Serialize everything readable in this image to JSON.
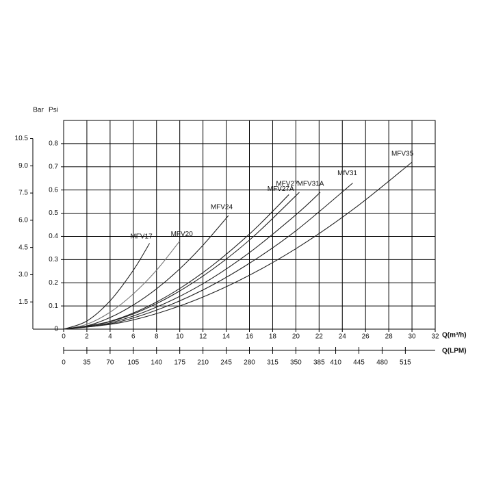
{
  "chart_data": {
    "type": "line",
    "y_axis_label": "Bar",
    "y2_axis_label": "Psi",
    "x_axis_label": "Q(m³/h)",
    "x2_axis_label": "Q(LPM)",
    "xlim": [
      0,
      32
    ],
    "xticks": [
      0,
      2,
      4,
      6,
      8,
      10,
      12,
      14,
      16,
      18,
      20,
      22,
      24,
      26,
      28,
      30,
      32
    ],
    "ylim": [
      0,
      0.9
    ],
    "yticks": [
      0,
      0.1,
      0.2,
      0.3,
      0.4,
      0.5,
      0.6,
      0.7,
      0.8
    ],
    "y2lim": [
      0,
      11.5
    ],
    "y2ticks": [
      {
        "value": 1.5,
        "label": "1.5"
      },
      {
        "value": 3,
        "label": "3.0"
      },
      {
        "value": 4.5,
        "label": "4.5"
      },
      {
        "value": 6,
        "label": "6.0"
      },
      {
        "value": 7.5,
        "label": "7.5"
      },
      {
        "value": 9,
        "label": "9.0"
      },
      {
        "value": 10.5,
        "label": "10.5"
      }
    ],
    "x2lim": [
      0,
      560
    ],
    "x2ticks": [
      0,
      35,
      70,
      105,
      140,
      175,
      210,
      245,
      280,
      315,
      350,
      385,
      410,
      445,
      480,
      515
    ],
    "grid": true,
    "series": [
      {
        "name": "MFV17",
        "color": "#222222",
        "x": [
          0,
          2,
          4,
          6,
          7.4
        ],
        "values": [
          0,
          0.035,
          0.122,
          0.254,
          0.37
        ]
      },
      {
        "name": "MFV20",
        "color": "#777777",
        "x": [
          0,
          2,
          4,
          6,
          8,
          10
        ],
        "values": [
          0,
          0.021,
          0.073,
          0.152,
          0.254,
          0.38
        ]
      },
      {
        "name": "MFV24",
        "color": "#222222",
        "x": [
          0,
          2,
          4,
          6,
          8,
          10,
          12,
          14.2
        ],
        "values": [
          0,
          0.014,
          0.05,
          0.104,
          0.174,
          0.26,
          0.362,
          0.49
        ]
      },
      {
        "name": "MFV27A",
        "color": "#222222",
        "x": [
          0,
          4,
          8,
          12,
          16,
          19.4
        ],
        "values": [
          0,
          0.034,
          0.117,
          0.244,
          0.41,
          0.58
        ]
      },
      {
        "name": "MFV27",
        "color": "#222222",
        "x": [
          0,
          4,
          8,
          12,
          16,
          20.3
        ],
        "values": [
          0,
          0.032,
          0.11,
          0.229,
          0.384,
          0.59
        ]
      },
      {
        "name": "MFV31A",
        "color": "#222222",
        "x": [
          0,
          4,
          8,
          12,
          16,
          20,
          22.1
        ],
        "values": [
          0,
          0.027,
          0.095,
          0.196,
          0.33,
          0.493,
          0.59
        ]
      },
      {
        "name": "MfV31",
        "color": "#222222",
        "x": [
          0,
          4,
          8,
          12,
          16,
          20,
          24.9
        ],
        "values": [
          0,
          0.023,
          0.082,
          0.169,
          0.284,
          0.424,
          0.63
        ]
      },
      {
        "name": "MFV35",
        "color": "#222222",
        "x": [
          0,
          5,
          10,
          15,
          20,
          25,
          30
        ],
        "values": [
          0,
          0.029,
          0.1,
          0.207,
          0.347,
          0.519,
          0.72
        ]
      }
    ]
  }
}
